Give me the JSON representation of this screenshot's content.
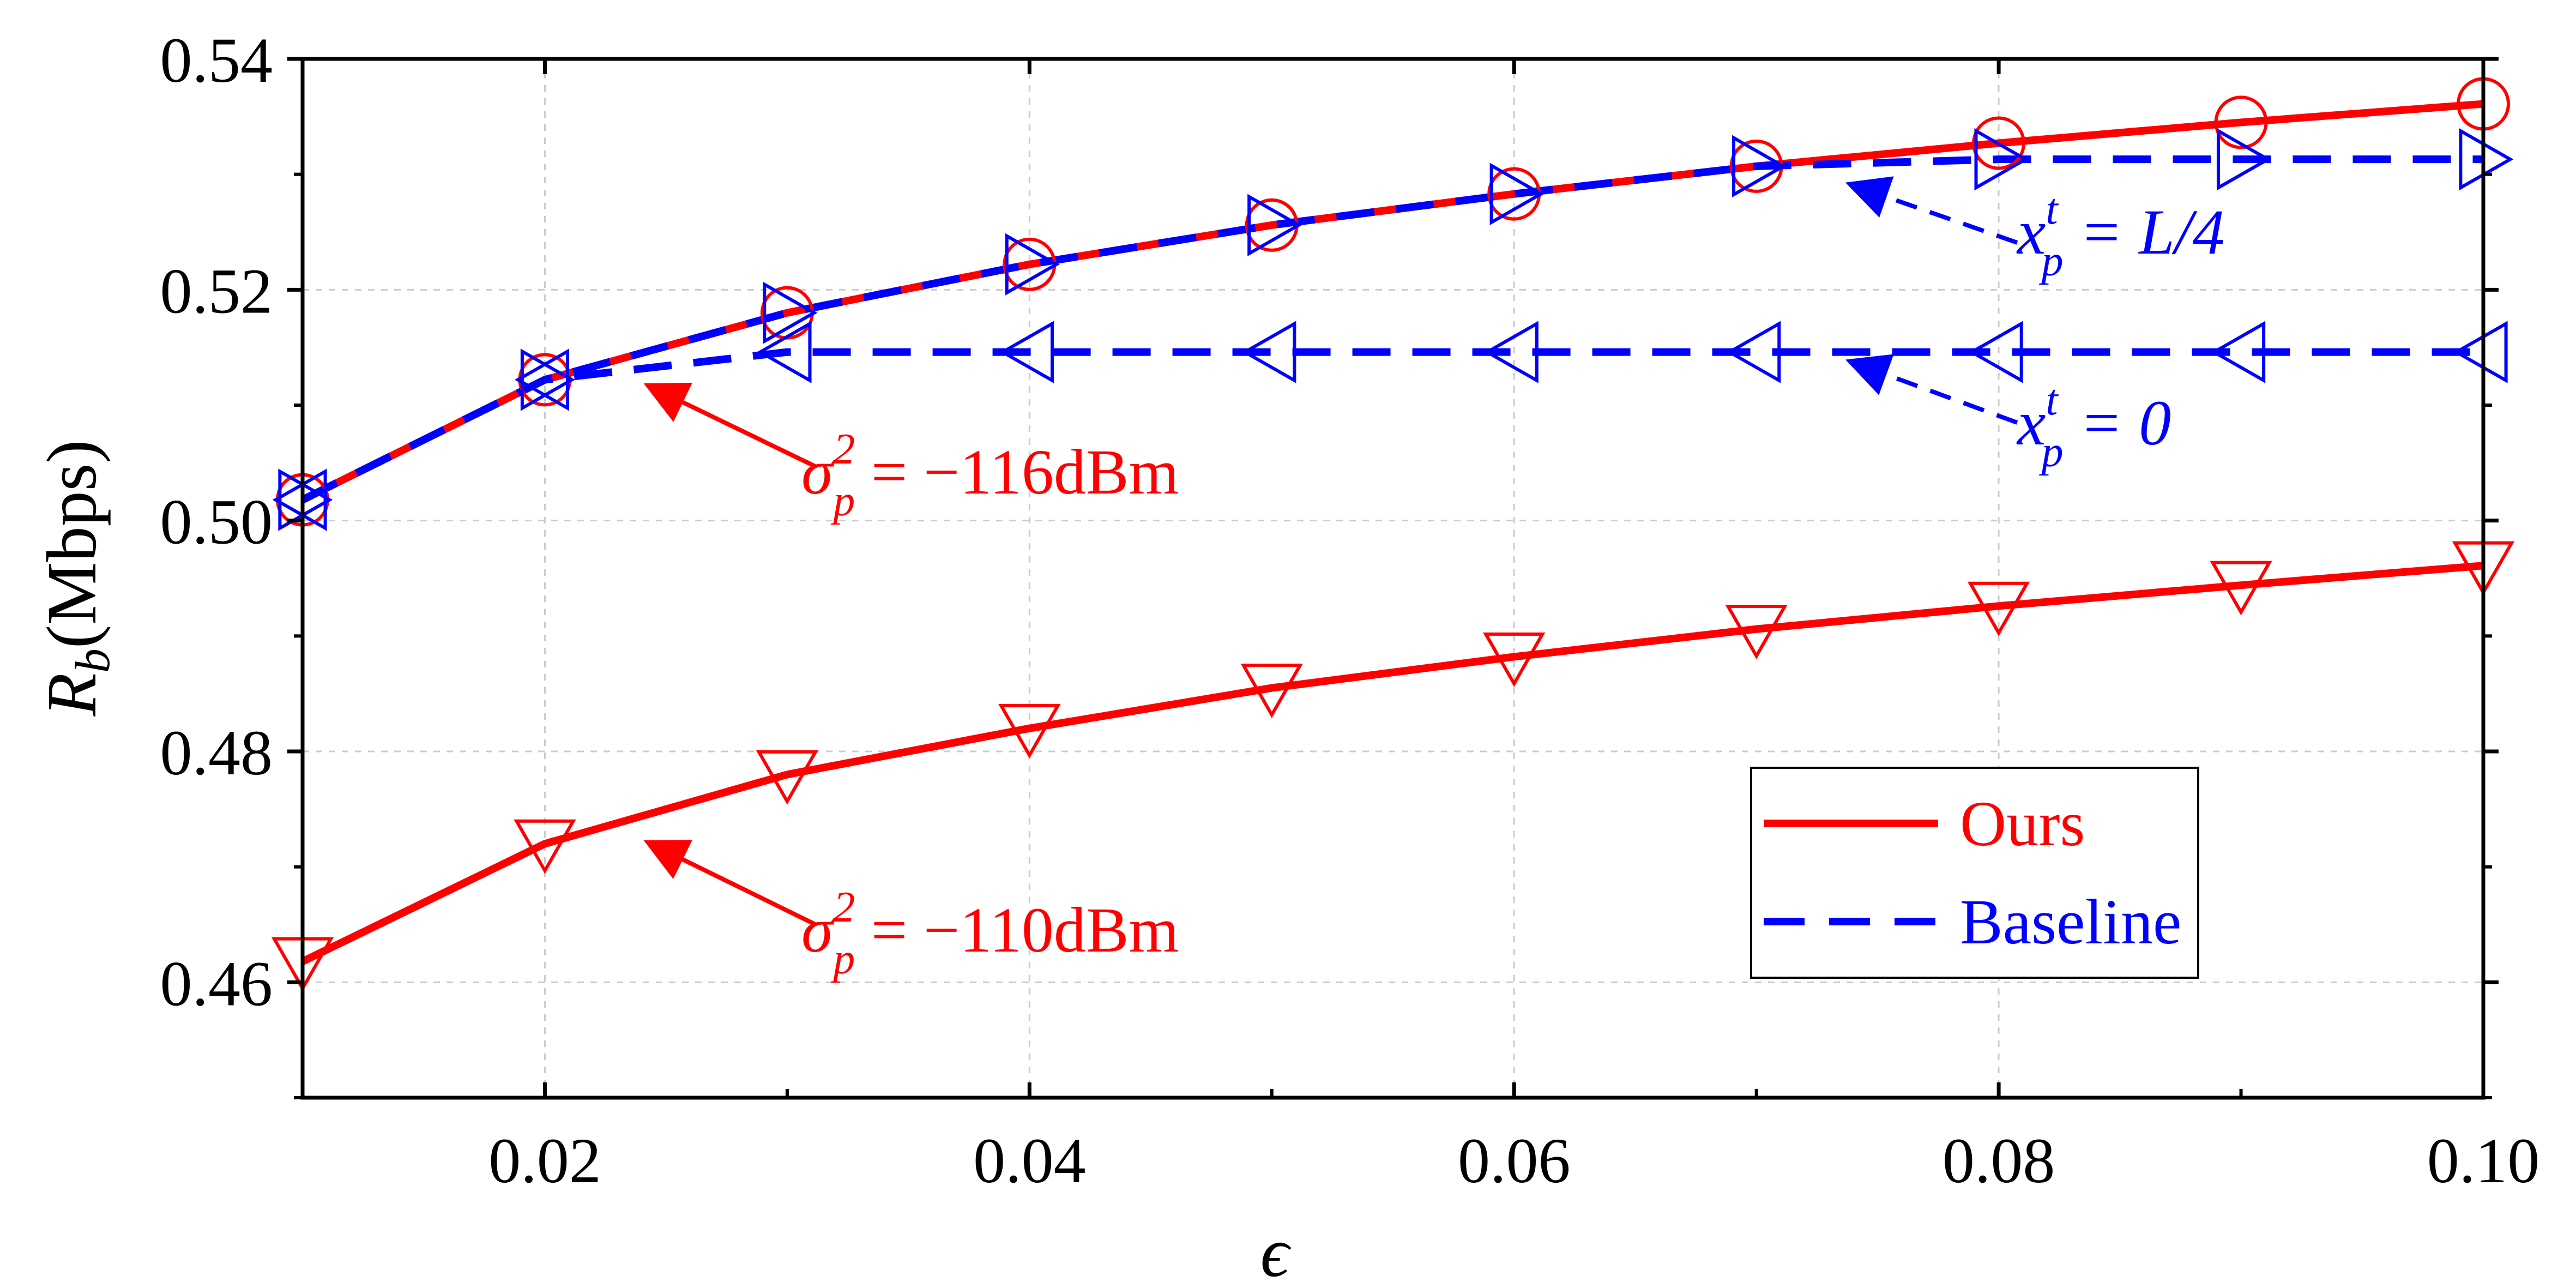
{
  "chart_data": {
    "type": "line",
    "title": "",
    "xlabel": "ϵ",
    "ylabel_main": "R",
    "ylabel_sub": "b",
    "ylabel_unit": "(Mbps)",
    "xlim": [
      0.01,
      0.1
    ],
    "ylim": [
      0.45,
      0.54
    ],
    "xticks": [
      0.02,
      0.04,
      0.06,
      0.08,
      0.1
    ],
    "xtick_labels": [
      "0.02",
      "0.04",
      "0.06",
      "0.08",
      "0.10"
    ],
    "xminor": [
      0.01,
      0.03,
      0.05,
      0.07,
      0.09
    ],
    "yticks": [
      0.46,
      0.48,
      0.5,
      0.52,
      0.54
    ],
    "ytick_labels": [
      "0.46",
      "0.48",
      "0.50",
      "0.52",
      "0.54"
    ],
    "yminor": [
      0.45,
      0.47,
      0.49,
      0.51,
      0.53
    ],
    "grid": true,
    "legend": {
      "placement": "lower-right",
      "entries": [
        {
          "label": "Ours",
          "color": "#ff0000",
          "style": "solid"
        },
        {
          "label": "Baseline",
          "color": "#0000ff",
          "style": "dashed"
        }
      ]
    },
    "series": [
      {
        "name": "Ours, σp² = −116dBm",
        "group": "Ours",
        "color": "#ff0000",
        "style": "solid",
        "marker": "circle",
        "x": [
          0.01,
          0.02,
          0.03,
          0.04,
          0.05,
          0.06,
          0.07,
          0.08,
          0.09,
          0.1
        ],
        "values": [
          0.5018,
          0.5122,
          0.518,
          0.5222,
          0.5256,
          0.5283,
          0.5307,
          0.5327,
          0.5345,
          0.5361
        ]
      },
      {
        "name": "Ours, σp² = −110dBm",
        "group": "Ours",
        "color": "#ff0000",
        "style": "solid",
        "marker": "triangle-down",
        "x": [
          0.01,
          0.02,
          0.03,
          0.04,
          0.05,
          0.06,
          0.07,
          0.08,
          0.09,
          0.1
        ],
        "values": [
          0.4618,
          0.472,
          0.478,
          0.482,
          0.4855,
          0.4882,
          0.4906,
          0.4926,
          0.4944,
          0.4961
        ]
      },
      {
        "name": "Baseline, xp^t = L/4",
        "group": "Baseline",
        "color": "#0000ff",
        "style": "dashed",
        "marker": "triangle-right",
        "x": [
          0.01,
          0.02,
          0.03,
          0.04,
          0.05,
          0.06,
          0.07,
          0.08,
          0.09,
          0.1
        ],
        "values": [
          0.5018,
          0.5122,
          0.518,
          0.5222,
          0.5256,
          0.5283,
          0.5307,
          0.5313,
          0.5313,
          0.5313
        ]
      },
      {
        "name": "Baseline, xp^t = 0",
        "group": "Baseline",
        "color": "#0000ff",
        "style": "dashed",
        "marker": "triangle-left",
        "x": [
          0.01,
          0.02,
          0.03,
          0.04,
          0.05,
          0.06,
          0.07,
          0.08,
          0.09,
          0.1
        ],
        "values": [
          0.5018,
          0.5122,
          0.5146,
          0.5146,
          0.5146,
          0.5146,
          0.5146,
          0.5146,
          0.5146,
          0.5146
        ]
      }
    ],
    "annotations": [
      {
        "id": "ann-116",
        "label_pre": "σ",
        "label_sub": "p",
        "label_sup": "2",
        "label_post": " = −116dBm",
        "color": "#ff0000",
        "arrow_to": [
          0.0235,
          0.5138
        ]
      },
      {
        "id": "ann-110",
        "label_pre": "σ",
        "label_sub": "p",
        "label_sup": "2",
        "label_post": " = −110dBm",
        "color": "#ff0000",
        "arrow_to": [
          0.0235,
          0.4737
        ]
      },
      {
        "id": "ann-l4",
        "label_pre": "x",
        "label_sub": "p",
        "label_sup": "t",
        "label_post": " = L/4",
        "color": "#0000ff",
        "arrow_to": [
          0.0715,
          0.5307
        ]
      },
      {
        "id": "ann-0",
        "label_pre": "x",
        "label_sub": "p",
        "label_sup": "t",
        "label_post": " = 0",
        "color": "#0000ff",
        "arrow_to": [
          0.0715,
          0.5146
        ]
      }
    ]
  }
}
